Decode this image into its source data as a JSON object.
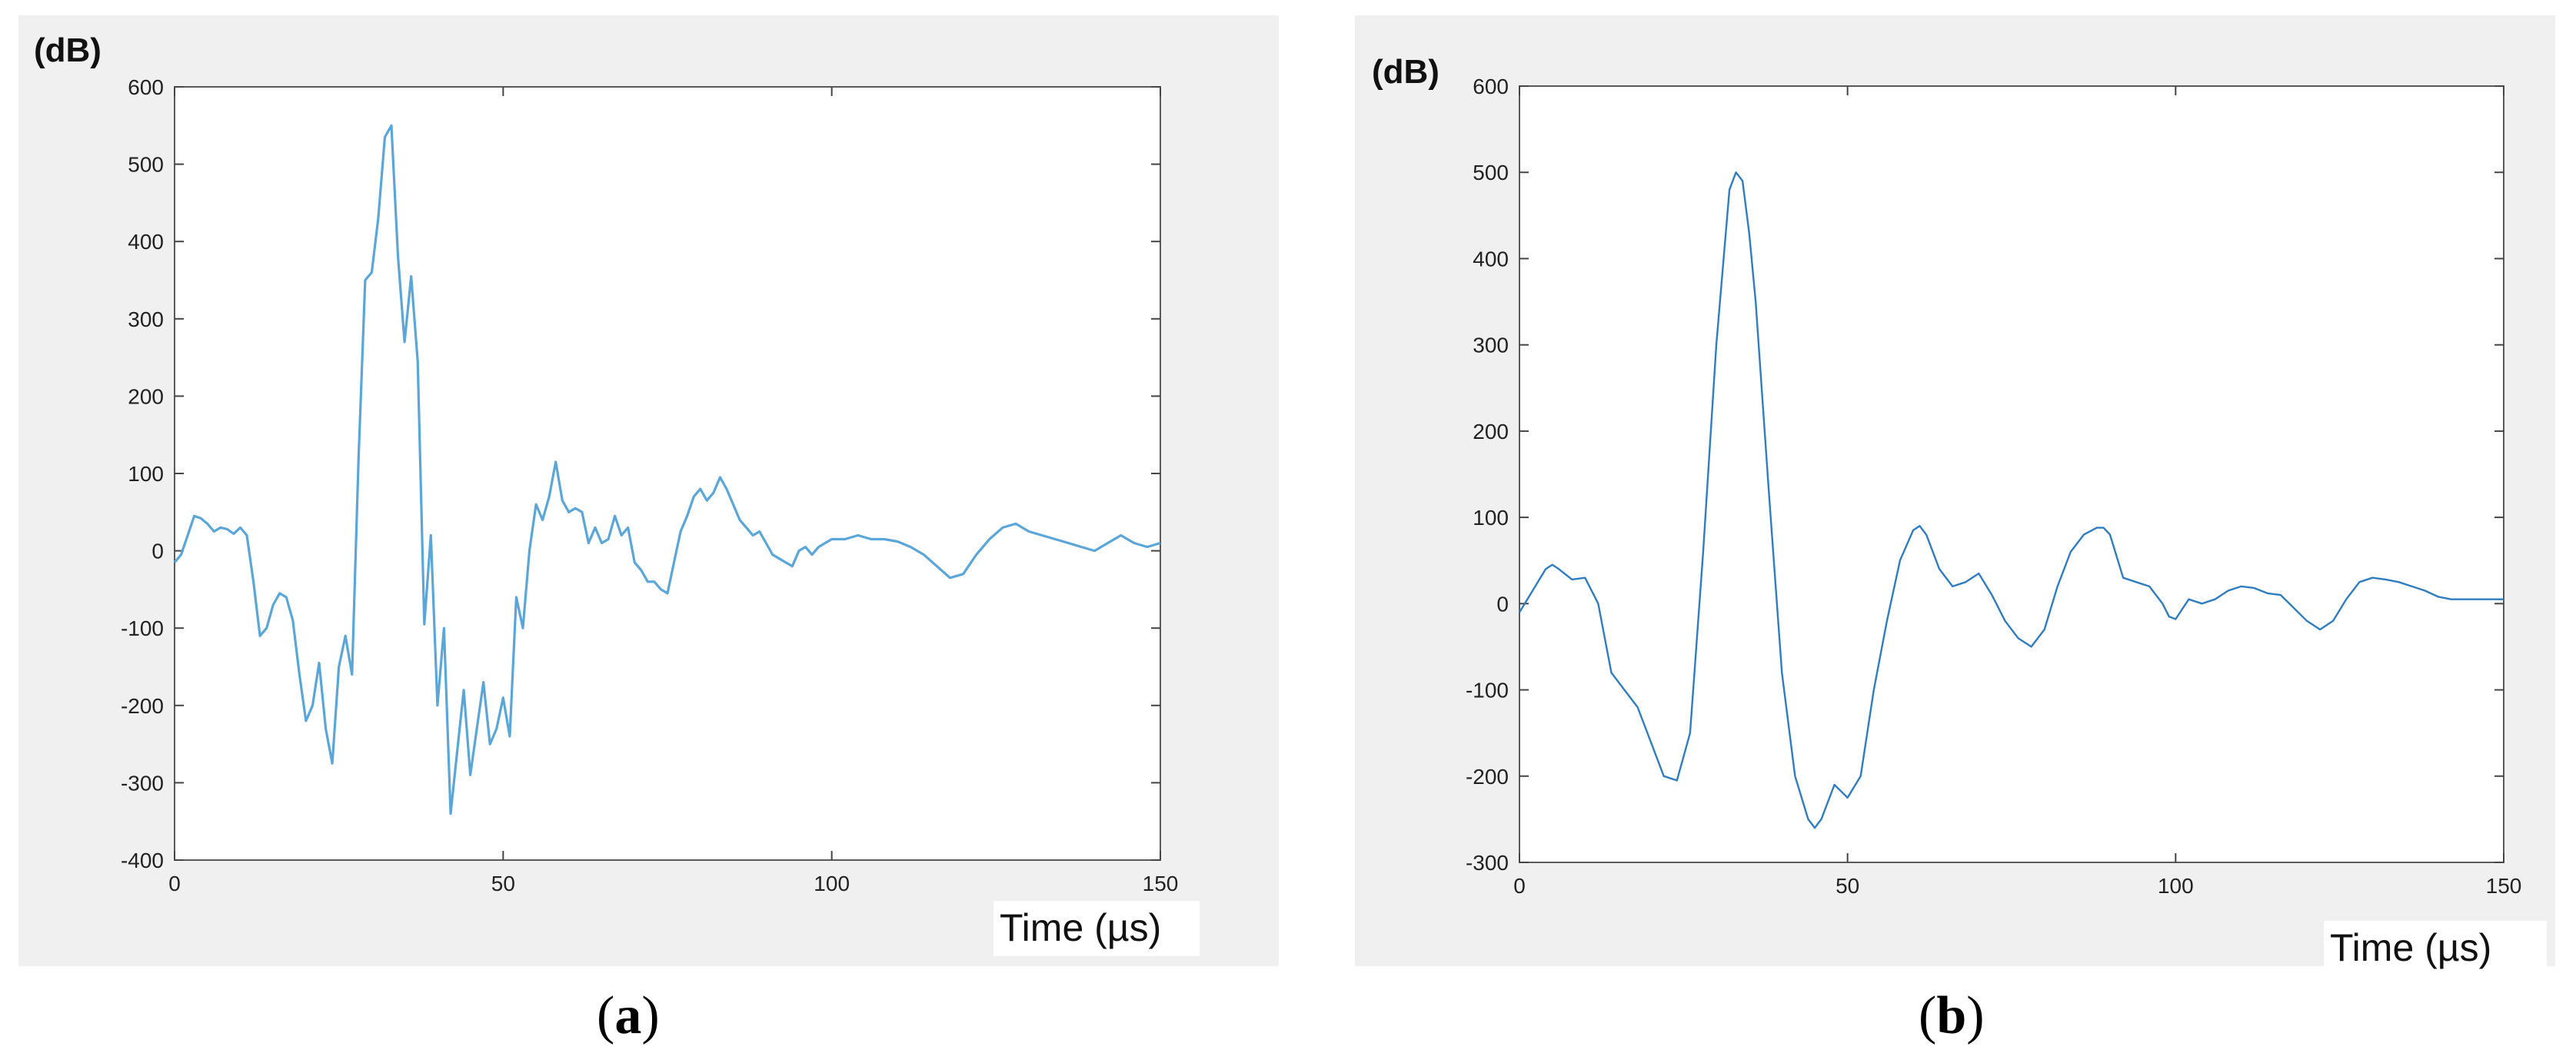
{
  "chart_data": [
    {
      "id": "a",
      "type": "line",
      "ylabel": "(dB)",
      "xlabel": "Time (µs)",
      "xlim": [
        0,
        150
      ],
      "ylim": [
        -400,
        600
      ],
      "xticks": [
        0,
        50,
        100,
        150
      ],
      "yticks": [
        -400,
        -300,
        -200,
        -100,
        0,
        100,
        200,
        300,
        400,
        500,
        600
      ],
      "grid": false,
      "line_color": "#5aa6d8",
      "series": [
        {
          "x": [
            0,
            1,
            2,
            3,
            4,
            5,
            6,
            7,
            8,
            9,
            10,
            11,
            12,
            13,
            14,
            15,
            16,
            17,
            18,
            19,
            20,
            21,
            22,
            23,
            24,
            25,
            26,
            27,
            28,
            29,
            30,
            31,
            32,
            33,
            34,
            35,
            36,
            37,
            38,
            39,
            40,
            41,
            42,
            43,
            44,
            45,
            46,
            47,
            48,
            49,
            50,
            51,
            52,
            53,
            54,
            55,
            56,
            57,
            58,
            59,
            60,
            61,
            62,
            63,
            64,
            65,
            66,
            67,
            68,
            69,
            70,
            71,
            72,
            73,
            74,
            75,
            76,
            77,
            78,
            79,
            80,
            81,
            82,
            83,
            84,
            85,
            86,
            87,
            88,
            89,
            90,
            91,
            92,
            93,
            94,
            95,
            96,
            97,
            98,
            99,
            100,
            102,
            104,
            106,
            108,
            110,
            112,
            114,
            116,
            118,
            120,
            122,
            124,
            126,
            128,
            130,
            132,
            134,
            136,
            138,
            140,
            142,
            144,
            146,
            148,
            150
          ],
          "values": [
            -15,
            -5,
            20,
            45,
            42,
            35,
            25,
            30,
            28,
            22,
            30,
            20,
            -40,
            -110,
            -100,
            -70,
            -55,
            -60,
            -90,
            -160,
            -220,
            -200,
            -145,
            -230,
            -275,
            -150,
            -110,
            -160,
            120,
            350,
            360,
            430,
            535,
            550,
            380,
            270,
            355,
            245,
            -95,
            20,
            -200,
            -100,
            -340,
            -260,
            -180,
            -290,
            -230,
            -170,
            -250,
            -230,
            -190,
            -240,
            -60,
            -100,
            0,
            60,
            40,
            70,
            115,
            65,
            50,
            55,
            50,
            10,
            30,
            10,
            15,
            45,
            20,
            30,
            -15,
            -25,
            -40,
            -40,
            -50,
            -55,
            -15,
            25,
            45,
            70,
            80,
            65,
            75,
            95,
            80,
            60,
            40,
            30,
            20,
            25,
            10,
            -5,
            -10,
            -15,
            -20,
            0,
            5,
            -5,
            5,
            10,
            15,
            15,
            20,
            15,
            15,
            12,
            5,
            -5,
            -20,
            -35,
            -30,
            -5,
            15,
            30,
            35,
            25,
            20,
            15,
            10,
            5,
            0,
            10,
            20,
            10,
            5,
            10
          ]
        }
      ]
    },
    {
      "id": "b",
      "type": "line",
      "ylabel": "(dB)",
      "xlabel": "Time (µs)",
      "xlim": [
        0,
        150
      ],
      "ylim": [
        -300,
        600
      ],
      "xticks": [
        0,
        50,
        100,
        150
      ],
      "yticks": [
        -300,
        -200,
        -100,
        0,
        100,
        200,
        300,
        400,
        500,
        600
      ],
      "grid": false,
      "line_color": "#2f7dc0",
      "series": [
        {
          "x": [
            0,
            2,
            4,
            5,
            6,
            8,
            10,
            12,
            14,
            16,
            18,
            20,
            22,
            24,
            26,
            28,
            30,
            32,
            33,
            34,
            35,
            36,
            38,
            40,
            42,
            44,
            45,
            46,
            48,
            50,
            52,
            54,
            56,
            58,
            60,
            61,
            62,
            64,
            66,
            68,
            70,
            72,
            74,
            76,
            78,
            80,
            82,
            84,
            86,
            88,
            89,
            90,
            92,
            94,
            96,
            98,
            99,
            100,
            102,
            104,
            106,
            108,
            110,
            112,
            114,
            116,
            118,
            120,
            122,
            124,
            126,
            128,
            130,
            132,
            134,
            136,
            138,
            140,
            142,
            144,
            146,
            148,
            150
          ],
          "values": [
            -10,
            15,
            40,
            45,
            40,
            28,
            30,
            0,
            -80,
            -100,
            -120,
            -160,
            -200,
            -205,
            -150,
            60,
            300,
            480,
            500,
            490,
            430,
            350,
            130,
            -80,
            -200,
            -250,
            -260,
            -250,
            -210,
            -225,
            -200,
            -100,
            -20,
            50,
            85,
            90,
            80,
            40,
            20,
            25,
            35,
            10,
            -20,
            -40,
            -50,
            -30,
            20,
            60,
            80,
            88,
            88,
            80,
            30,
            25,
            20,
            0,
            -15,
            -18,
            5,
            0,
            5,
            15,
            20,
            18,
            12,
            10,
            -5,
            -20,
            -30,
            -20,
            5,
            25,
            30,
            28,
            25,
            20,
            15,
            8,
            5,
            5,
            5,
            5,
            5
          ]
        }
      ]
    }
  ],
  "captions": {
    "a": "a",
    "b": "b"
  }
}
